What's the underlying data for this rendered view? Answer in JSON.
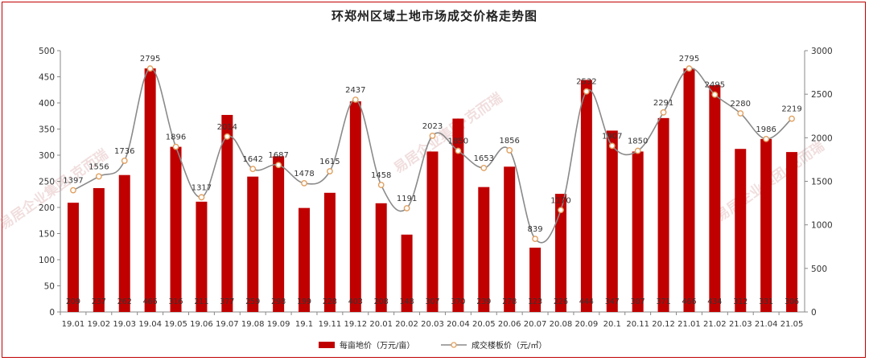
{
  "chart_data": {
    "type": "bar+line",
    "title": "环郑州区域土地市场成交价格走势图",
    "categories": [
      "19.01",
      "19.02",
      "19.03",
      "19.04",
      "19.05",
      "19.06",
      "19.07",
      "19.08",
      "19.09",
      "19.1",
      "19.11",
      "19.12",
      "20.01",
      "20.02",
      "20.03",
      "20.04",
      "20.05",
      "20.06",
      "20.07",
      "20.08",
      "20.09",
      "20.1",
      "20.11",
      "20.12",
      "21.01",
      "21.02",
      "21.03",
      "21.04",
      "21.05"
    ],
    "series": [
      {
        "name": "每亩地价（万元/亩）",
        "type": "bar",
        "axis": "left",
        "color": "#c00000",
        "values": [
          209,
          237,
          262,
          466,
          316,
          211,
          377,
          259,
          298,
          199,
          228,
          403,
          208,
          148,
          307,
          370,
          239,
          278,
          123,
          226,
          444,
          347,
          307,
          371,
          466,
          434,
          312,
          331,
          306
        ]
      },
      {
        "name": "成交楼板价（元/㎡）",
        "type": "line",
        "axis": "right",
        "color": "#8a8a8a",
        "marker_color": "#e0a060",
        "values": [
          1397,
          1556,
          1736,
          2795,
          1896,
          1317,
          2014,
          1642,
          1687,
          1478,
          1615,
          2437,
          1458,
          1191,
          2023,
          1850,
          1653,
          1856,
          839,
          1170,
          2532,
          1907,
          1850,
          2291,
          2795,
          2495,
          2280,
          1986,
          2219
        ]
      }
    ],
    "y_left": {
      "range": [
        0,
        500
      ],
      "ticks": [
        0,
        50,
        100,
        150,
        200,
        250,
        300,
        350,
        400,
        450,
        500
      ]
    },
    "y_right": {
      "range": [
        0,
        3000
      ],
      "ticks": [
        0,
        500,
        1000,
        1500,
        2000,
        2500,
        3000
      ]
    },
    "grid": false,
    "legend_position": "bottom-center",
    "watermark": "易居企业集团·克而瑞"
  }
}
